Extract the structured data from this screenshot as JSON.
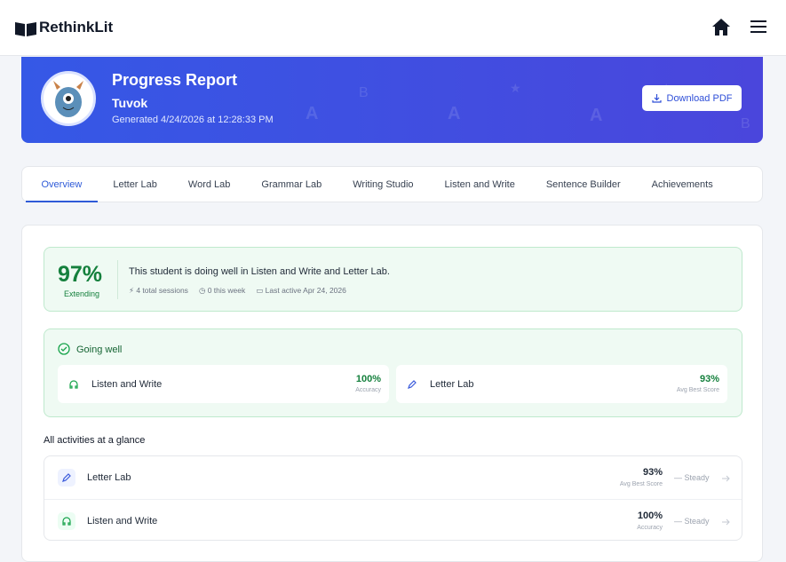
{
  "header": {
    "brand": "RethinkLit"
  },
  "banner": {
    "title": "Progress Report",
    "student": "Tuvok",
    "generated": "Generated 4/24/2026 at 12:28:33 PM",
    "button": "Download PDF"
  },
  "tabs": [
    "Overview",
    "Letter Lab",
    "Word Lab",
    "Grammar Lab",
    "Writing Studio",
    "Listen and Write",
    "Sentence Builder",
    "Achievements"
  ],
  "summary": {
    "score": "97%",
    "level": "Extending",
    "message": "This student is doing well in Listen and Write and Letter Lab.",
    "stats": [
      "4 total sessions",
      "0 this week",
      "Last active Apr 24, 2026"
    ]
  },
  "going_well": {
    "title": "Going well",
    "items": [
      {
        "name": "Listen and Write",
        "value": "100%",
        "label": "Accuracy"
      },
      {
        "name": "Letter Lab",
        "value": "93%",
        "label": "Avg Best Score"
      }
    ]
  },
  "activities": {
    "title": "All activities at a glance",
    "rows": [
      {
        "name": "Letter Lab",
        "value": "93%",
        "label": "Avg Best Score",
        "trend": "Steady"
      },
      {
        "name": "Listen and Write",
        "value": "100%",
        "label": "Accuracy",
        "trend": "Steady"
      }
    ]
  }
}
